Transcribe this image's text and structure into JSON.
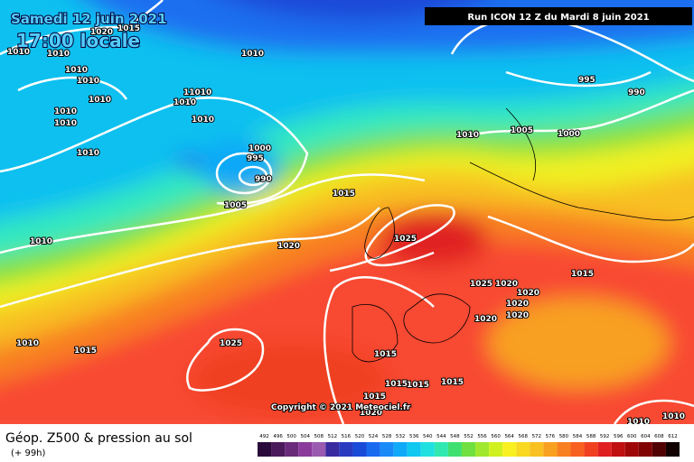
{
  "header": {
    "date": "Samedi 12 juin 2021",
    "time": "17:00 locale",
    "run": "Run ICON 12 Z du Mardi 8 juin 2021"
  },
  "copyright": "Copyright © 2021 Meteociel.fr",
  "footer": {
    "title": "Géop. Z500 & pression au sol",
    "lead": "(+ 99h)"
  },
  "isobar_labels": [
    "1010",
    "1010",
    "1020",
    "1015",
    "1010",
    "1010",
    "1010",
    "1010",
    "1010",
    "1010",
    "11010",
    "1010",
    "1010",
    "1010",
    "1000",
    "995",
    "990",
    "1005",
    "1015",
    "1020",
    "1010",
    "1010",
    "1005",
    "1000",
    "995",
    "990",
    "1025",
    "1025",
    "1020",
    "1020",
    "1020",
    "1020",
    "1020",
    "1015",
    "1025",
    "1015",
    "1010",
    "1015",
    "1015",
    "1015",
    "1015",
    "1015",
    "1020",
    "1010",
    "1010"
  ],
  "legend": {
    "values": [
      492,
      496,
      500,
      504,
      508,
      512,
      516,
      520,
      524,
      528,
      532,
      536,
      540,
      544,
      548,
      552,
      556,
      560,
      564,
      568,
      572,
      576,
      580,
      584,
      588,
      592,
      596,
      600,
      604,
      608,
      612
    ],
    "colors": [
      "#2a0a3a",
      "#4a1a5a",
      "#6a2a7a",
      "#8a3a9a",
      "#9a5ab0",
      "#3a2aa0",
      "#2a3ac0",
      "#1a4ad8",
      "#1a6af0",
      "#1a8af8",
      "#10aaf8",
      "#10c8f0",
      "#20e0e0",
      "#30e8b0",
      "#40e070",
      "#70e040",
      "#a0e830",
      "#d0f020",
      "#f8f020",
      "#f8d820",
      "#f8c020",
      "#f8a020",
      "#f88020",
      "#f86020",
      "#f04020",
      "#e02020",
      "#c01010",
      "#a00808",
      "#800404",
      "#500202",
      "#100000"
    ]
  }
}
